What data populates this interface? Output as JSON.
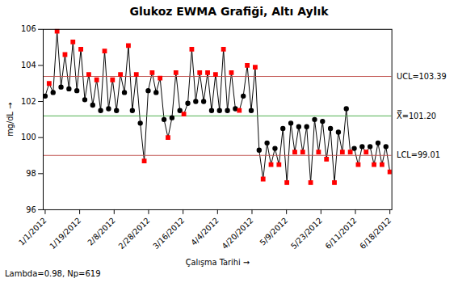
{
  "chart_data": {
    "type": "line",
    "title": "Glukoz EWMA Grafiği, Altı Aylık",
    "xlabel": "Çalışma Tarihi",
    "ylabel": "mg/dL",
    "x": [
      0,
      1,
      2,
      3,
      4,
      5,
      6,
      7,
      8,
      9,
      10,
      11,
      12,
      13,
      14,
      15,
      16,
      17,
      18,
      19,
      20,
      21,
      22,
      23,
      24,
      25,
      26,
      27,
      28,
      29,
      30,
      31,
      32,
      33,
      34,
      35,
      36,
      37,
      38,
      39,
      40,
      41,
      42,
      43,
      44,
      45,
      46,
      47,
      48,
      49,
      50,
      51,
      52,
      53,
      54,
      55,
      56,
      57,
      58,
      59,
      60,
      61,
      62,
      63,
      64,
      65,
      66,
      67,
      68,
      69,
      70,
      71,
      72,
      73,
      74,
      75,
      76,
      77,
      78,
      79,
      80,
      81,
      82,
      83,
      84,
      85,
      86,
      87
    ],
    "xlim": [
      -0.5,
      87.5
    ],
    "xticks": [
      {
        "value": 0,
        "label": "1/1/2012"
      },
      {
        "value": 8.7,
        "label": "1/19/2012"
      },
      {
        "value": 17.4,
        "label": "2/8/2012"
      },
      {
        "value": 26.1,
        "label": "2/28/2012"
      },
      {
        "value": 34.8,
        "label": "3/16/2012"
      },
      {
        "value": 43.5,
        "label": "4/4/2012"
      },
      {
        "value": 52.2,
        "label": "4/20/2012"
      },
      {
        "value": 60.9,
        "label": "5/9/2012"
      },
      {
        "value": 69.6,
        "label": "5/23/2012"
      },
      {
        "value": 78.3,
        "label": "6/11/2012"
      },
      {
        "value": 87,
        "label": "6/18/2012"
      }
    ],
    "ylim": [
      96,
      106
    ],
    "yticks": [
      96,
      98,
      100,
      102,
      104,
      106
    ],
    "grid": false,
    "series": [
      {
        "type": "line",
        "color": "black",
        "values": [
          102.3,
          103.0,
          102.5,
          105.9,
          102.8,
          104.6,
          102.7,
          105.3,
          102.6,
          104.9,
          102.1,
          103.5,
          101.8,
          103.2,
          101.5,
          104.8,
          101.6,
          103.2,
          101.5,
          103.5,
          102.5,
          105.1,
          101.5,
          103.5,
          100.8,
          98.7,
          102.6,
          103.6,
          102.5,
          103.3,
          101.0,
          100.0,
          101.1,
          103.6,
          101.5,
          101.3,
          101.9,
          104.9,
          102.0,
          103.6,
          102.0,
          103.6,
          101.5,
          103.5,
          101.5,
          104.9,
          101.5,
          103.6,
          101.6,
          101.5,
          102.3,
          104.0,
          101.5,
          103.9,
          99.3,
          97.7,
          99.7,
          98.5,
          99.4,
          98.5,
          100.5,
          97.5,
          100.8,
          99.2,
          100.6,
          99.2,
          100.6,
          97.5,
          101.0,
          99.2,
          100.9,
          98.8,
          100.5,
          97.5,
          100.3,
          99.2,
          101.6,
          99.2,
          99.4,
          98.5,
          99.5,
          99.2,
          99.5,
          98.5,
          99.7,
          98.5,
          99.5,
          98.1
        ]
      },
      {
        "type": "scatter",
        "color": "black",
        "marker": "circle",
        "values": [
          102.3,
          null,
          102.5,
          null,
          102.8,
          null,
          102.7,
          null,
          102.6,
          null,
          102.1,
          null,
          101.8,
          null,
          101.5,
          null,
          101.6,
          null,
          101.5,
          null,
          102.5,
          null,
          101.5,
          null,
          100.8,
          null,
          102.6,
          null,
          102.5,
          null,
          101.0,
          null,
          101.1,
          null,
          101.5,
          null,
          101.9,
          null,
          102.0,
          null,
          102.0,
          null,
          101.5,
          null,
          101.5,
          null,
          101.5,
          null,
          101.6,
          null,
          102.3,
          null,
          101.5,
          null,
          99.3,
          null,
          99.7,
          null,
          99.4,
          null,
          100.5,
          null,
          100.8,
          null,
          100.6,
          null,
          100.6,
          null,
          101.0,
          null,
          100.9,
          null,
          100.5,
          null,
          100.3,
          null,
          101.6,
          null,
          99.4,
          null,
          99.5,
          null,
          99.5,
          null,
          99.7,
          null,
          99.5,
          null
        ]
      },
      {
        "type": "scatter",
        "color": "red",
        "marker": "square",
        "values": [
          null,
          103.0,
          null,
          105.9,
          null,
          104.6,
          null,
          105.3,
          null,
          104.9,
          null,
          103.5,
          null,
          103.2,
          null,
          104.8,
          null,
          103.2,
          null,
          103.5,
          null,
          105.1,
          null,
          103.5,
          null,
          98.7,
          null,
          103.6,
          null,
          103.3,
          null,
          100.0,
          null,
          103.6,
          null,
          101.3,
          null,
          104.9,
          null,
          103.6,
          null,
          103.6,
          null,
          103.5,
          null,
          104.9,
          null,
          103.6,
          null,
          101.5,
          null,
          104.0,
          null,
          103.9,
          null,
          97.7,
          null,
          98.5,
          null,
          98.5,
          null,
          97.5,
          null,
          99.2,
          null,
          99.2,
          null,
          97.5,
          null,
          99.2,
          null,
          98.8,
          null,
          97.5,
          null,
          99.2,
          null,
          99.2,
          null,
          98.5,
          null,
          99.2,
          null,
          98.5,
          null,
          98.5,
          null,
          98.1
        ]
      }
    ],
    "annotations": [
      {
        "type": "hline",
        "value": 103.39,
        "label": "UCL=103.39",
        "color": "#c0504d"
      },
      {
        "type": "hline",
        "value": 101.2,
        "label": "X̿=101.20",
        "color": "#4cae4c"
      },
      {
        "type": "hline",
        "value": 99.01,
        "label": "LCL=99.01",
        "color": "#c0504d"
      }
    ],
    "caption": "Lambda=0.98, Np=619"
  }
}
